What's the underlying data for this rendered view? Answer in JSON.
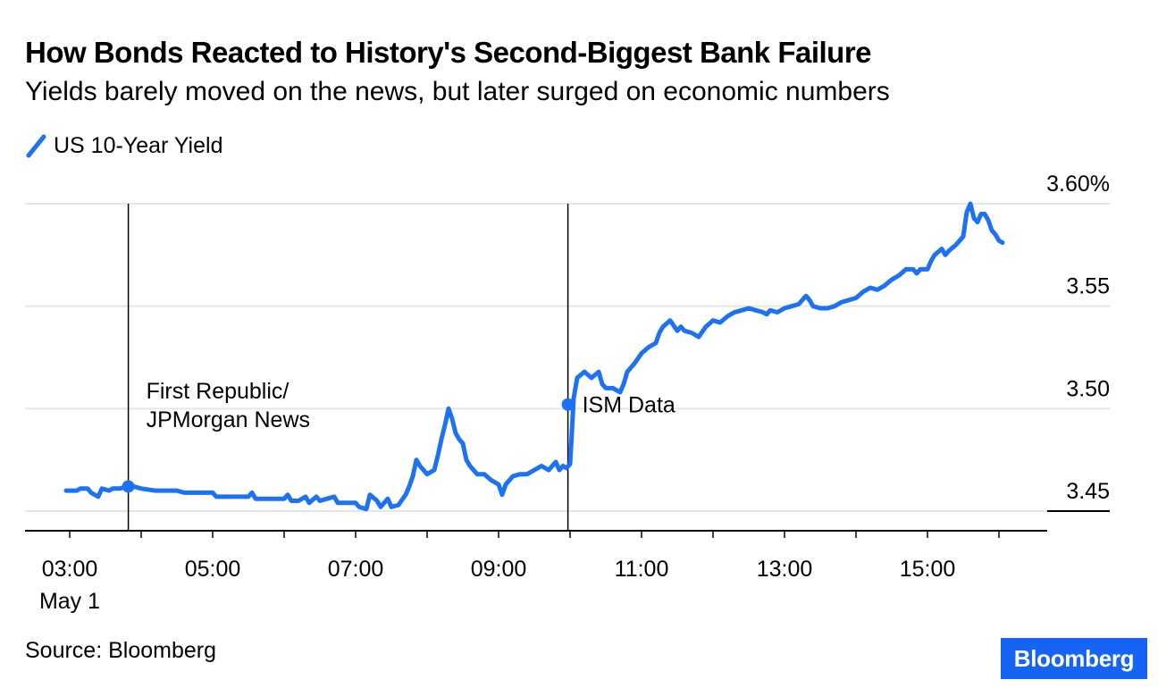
{
  "header": {
    "title": "How Bonds Reacted to History's Second-Biggest Bank Failure",
    "subtitle": "Yields barely moved on the news, but later surged on economic numbers"
  },
  "footer": {
    "source": "Source: Bloomberg",
    "brand": "Bloomberg"
  },
  "colors": {
    "line": "#1d72f3",
    "brand": "#1764f4",
    "grid": "#e6e6e6"
  },
  "chart_data": {
    "type": "line",
    "title": "How Bonds Reacted to History's Second-Biggest Bank Failure",
    "subtitle": "Yields barely moved on the news, but later surged on economic numbers",
    "xlabel": "",
    "ylabel": "",
    "x_unit": "hours since 00:00, May 1",
    "xlim": [
      2.4,
      16.6
    ],
    "ylim": [
      3.44,
      3.605
    ],
    "grid": true,
    "legend_placement": "top-left",
    "x_ticks": [
      {
        "x": 3,
        "label": "03:00",
        "sublabel": "May 1"
      },
      {
        "x": 5,
        "label": "05:00"
      },
      {
        "x": 7,
        "label": "07:00"
      },
      {
        "x": 9,
        "label": "09:00"
      },
      {
        "x": 11,
        "label": "11:00"
      },
      {
        "x": 13,
        "label": "13:00"
      },
      {
        "x": 15,
        "label": "15:00"
      }
    ],
    "y_ticks": [
      {
        "y": 3.45,
        "label": "3.45"
      },
      {
        "y": 3.5,
        "label": "3.50"
      },
      {
        "y": 3.55,
        "label": "3.55"
      },
      {
        "y": 3.6,
        "label": "3.60%"
      }
    ],
    "series": [
      {
        "name": "US 10-Year Yield",
        "points": [
          [
            2.95,
            3.46
          ],
          [
            3.1,
            3.46
          ],
          [
            3.15,
            3.461
          ],
          [
            3.25,
            3.461
          ],
          [
            3.3,
            3.459
          ],
          [
            3.4,
            3.457
          ],
          [
            3.45,
            3.461
          ],
          [
            3.55,
            3.46
          ],
          [
            3.6,
            3.461
          ],
          [
            3.7,
            3.461
          ],
          [
            3.8,
            3.462
          ],
          [
            3.9,
            3.462
          ],
          [
            4.0,
            3.461
          ],
          [
            4.2,
            3.46
          ],
          [
            4.5,
            3.46
          ],
          [
            4.6,
            3.459
          ],
          [
            5.0,
            3.459
          ],
          [
            5.05,
            3.457
          ],
          [
            5.2,
            3.457
          ],
          [
            5.5,
            3.457
          ],
          [
            5.55,
            3.459
          ],
          [
            5.6,
            3.456
          ],
          [
            6.0,
            3.456
          ],
          [
            6.05,
            3.458
          ],
          [
            6.1,
            3.455
          ],
          [
            6.2,
            3.455
          ],
          [
            6.3,
            3.457
          ],
          [
            6.35,
            3.454
          ],
          [
            6.45,
            3.457
          ],
          [
            6.5,
            3.455
          ],
          [
            6.6,
            3.456
          ],
          [
            6.7,
            3.457
          ],
          [
            6.75,
            3.454
          ],
          [
            7.0,
            3.454
          ],
          [
            7.05,
            3.452
          ],
          [
            7.15,
            3.451
          ],
          [
            7.2,
            3.458
          ],
          [
            7.3,
            3.455
          ],
          [
            7.35,
            3.452
          ],
          [
            7.45,
            3.456
          ],
          [
            7.5,
            3.452
          ],
          [
            7.6,
            3.453
          ],
          [
            7.7,
            3.458
          ],
          [
            7.75,
            3.462
          ],
          [
            7.8,
            3.467
          ],
          [
            7.85,
            3.475
          ],
          [
            7.9,
            3.472
          ],
          [
            8.0,
            3.468
          ],
          [
            8.1,
            3.47
          ],
          [
            8.15,
            3.477
          ],
          [
            8.2,
            3.485
          ],
          [
            8.25,
            3.492
          ],
          [
            8.3,
            3.5
          ],
          [
            8.35,
            3.495
          ],
          [
            8.4,
            3.488
          ],
          [
            8.45,
            3.485
          ],
          [
            8.5,
            3.483
          ],
          [
            8.55,
            3.475
          ],
          [
            8.6,
            3.472
          ],
          [
            8.7,
            3.468
          ],
          [
            8.8,
            3.468
          ],
          [
            8.9,
            3.465
          ],
          [
            9.0,
            3.463
          ],
          [
            9.05,
            3.458
          ],
          [
            9.1,
            3.463
          ],
          [
            9.2,
            3.467
          ],
          [
            9.3,
            3.468
          ],
          [
            9.4,
            3.468
          ],
          [
            9.5,
            3.47
          ],
          [
            9.6,
            3.472
          ],
          [
            9.7,
            3.47
          ],
          [
            9.8,
            3.474
          ],
          [
            9.85,
            3.47
          ],
          [
            9.9,
            3.472
          ],
          [
            9.95,
            3.471
          ],
          [
            10.0,
            3.473
          ],
          [
            10.02,
            3.485
          ],
          [
            10.05,
            3.505
          ],
          [
            10.1,
            3.515
          ],
          [
            10.2,
            3.518
          ],
          [
            10.3,
            3.515
          ],
          [
            10.4,
            3.518
          ],
          [
            10.45,
            3.512
          ],
          [
            10.5,
            3.51
          ],
          [
            10.6,
            3.51
          ],
          [
            10.7,
            3.508
          ],
          [
            10.75,
            3.512
          ],
          [
            10.8,
            3.518
          ],
          [
            10.9,
            3.522
          ],
          [
            11.0,
            3.527
          ],
          [
            11.1,
            3.53
          ],
          [
            11.2,
            3.532
          ],
          [
            11.25,
            3.537
          ],
          [
            11.3,
            3.54
          ],
          [
            11.4,
            3.543
          ],
          [
            11.5,
            3.538
          ],
          [
            11.55,
            3.54
          ],
          [
            11.6,
            3.538
          ],
          [
            11.7,
            3.537
          ],
          [
            11.8,
            3.535
          ],
          [
            11.9,
            3.54
          ],
          [
            12.0,
            3.543
          ],
          [
            12.1,
            3.542
          ],
          [
            12.2,
            3.545
          ],
          [
            12.3,
            3.547
          ],
          [
            12.4,
            3.548
          ],
          [
            12.5,
            3.549
          ],
          [
            12.6,
            3.548
          ],
          [
            12.7,
            3.547
          ],
          [
            12.75,
            3.546
          ],
          [
            12.8,
            3.548
          ],
          [
            12.9,
            3.547
          ],
          [
            13.0,
            3.549
          ],
          [
            13.1,
            3.55
          ],
          [
            13.2,
            3.551
          ],
          [
            13.3,
            3.555
          ],
          [
            13.35,
            3.553
          ],
          [
            13.4,
            3.55
          ],
          [
            13.5,
            3.549
          ],
          [
            13.6,
            3.549
          ],
          [
            13.7,
            3.55
          ],
          [
            13.8,
            3.552
          ],
          [
            13.9,
            3.553
          ],
          [
            14.0,
            3.554
          ],
          [
            14.1,
            3.557
          ],
          [
            14.2,
            3.559
          ],
          [
            14.3,
            3.558
          ],
          [
            14.4,
            3.56
          ],
          [
            14.5,
            3.563
          ],
          [
            14.6,
            3.565
          ],
          [
            14.7,
            3.568
          ],
          [
            14.8,
            3.568
          ],
          [
            14.85,
            3.566
          ],
          [
            14.9,
            3.568
          ],
          [
            15.0,
            3.568
          ],
          [
            15.05,
            3.572
          ],
          [
            15.1,
            3.575
          ],
          [
            15.2,
            3.578
          ],
          [
            15.25,
            3.575
          ],
          [
            15.3,
            3.577
          ],
          [
            15.4,
            3.58
          ],
          [
            15.5,
            3.584
          ],
          [
            15.55,
            3.596
          ],
          [
            15.6,
            3.6
          ],
          [
            15.65,
            3.593
          ],
          [
            15.7,
            3.591
          ],
          [
            15.75,
            3.595
          ],
          [
            15.8,
            3.595
          ],
          [
            15.85,
            3.592
          ],
          [
            15.9,
            3.587
          ],
          [
            15.95,
            3.585
          ],
          [
            16.0,
            3.582
          ],
          [
            16.05,
            3.581
          ]
        ]
      }
    ],
    "annotations": [
      {
        "x": 3.82,
        "y": 3.462,
        "lines": [
          "First Republic/",
          "JPMorgan News"
        ],
        "text_anchor_y": 3.5
      },
      {
        "x": 9.97,
        "y": 3.502,
        "lines": [
          "ISM Data"
        ],
        "text_anchor_y": 3.502
      }
    ]
  }
}
